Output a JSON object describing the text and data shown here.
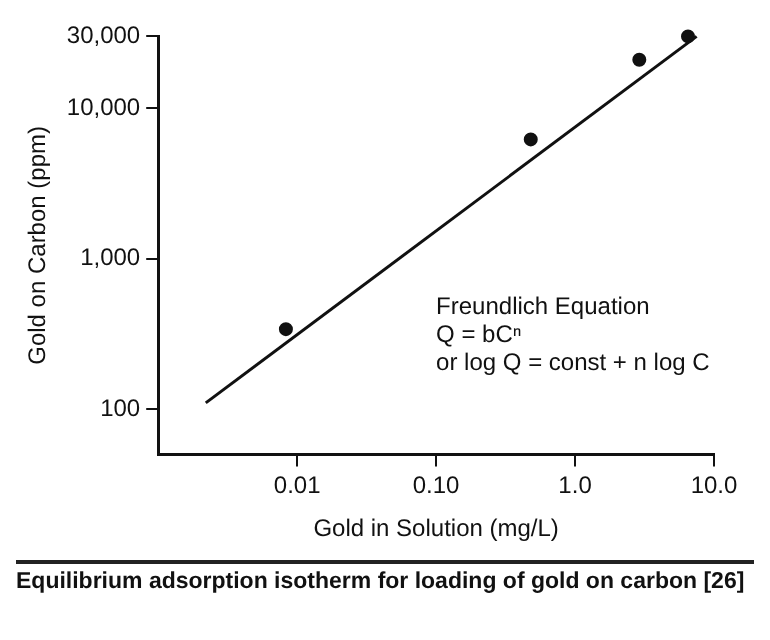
{
  "chart_data": {
    "type": "scatter",
    "xlabel": "Gold in Solution (mg/L)",
    "ylabel": "Gold on Carbon (ppm)",
    "series": [
      {
        "color": "#111111",
        "marker": "circle",
        "x": [
          0.0083,
          0.48,
          2.9,
          6.5
        ],
        "values": [
          340,
          6200,
          21000,
          30000
        ]
      },
      {
        "type": "line",
        "color": "#111111",
        "marker": "none",
        "x": [
          0.0022,
          7.5
        ],
        "values": [
          110,
          30000
        ]
      }
    ],
    "log": "xy",
    "grid": false,
    "legend": false,
    "xlim": [
      0.001,
      10
    ],
    "xticks": [
      {
        "value": 0.01,
        "label": "0.01"
      },
      {
        "value": 0.1,
        "label": "0.10"
      },
      {
        "value": 1,
        "label": "1.0"
      },
      {
        "value": 10,
        "label": "10.0"
      }
    ],
    "ylim": [
      50,
      30000
    ],
    "yticks": [
      100,
      {
        "value": 1000,
        "label": "1,000"
      },
      {
        "value": 10000,
        "label": "10,000"
      },
      {
        "value": 30000,
        "label": "30,000"
      }
    ],
    "annotations": [
      "Freundlich Equation",
      "Q = bCⁿ",
      "or log Q = const + n log C",
      "Equilibrium adsorption isotherm for loading of gold on carbon [26]"
    ]
  }
}
